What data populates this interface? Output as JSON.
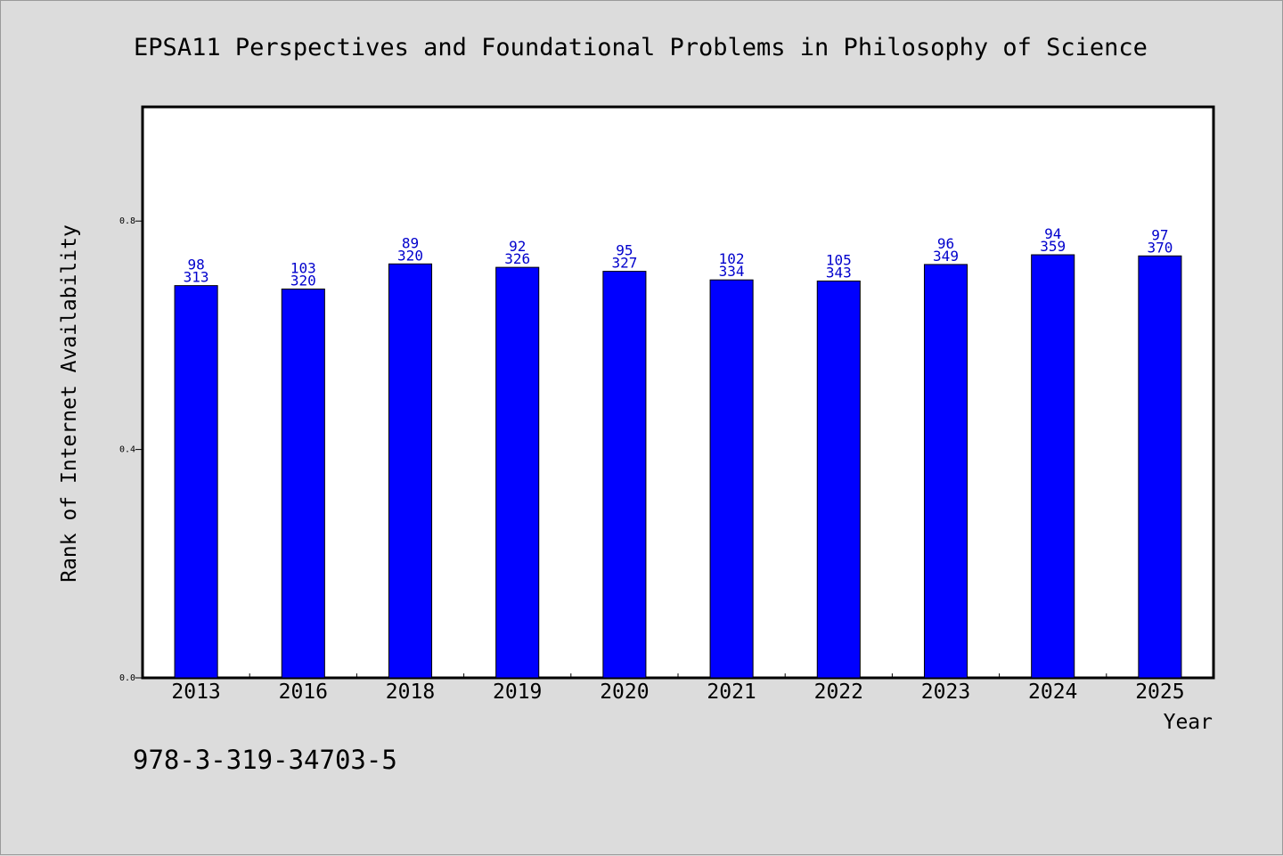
{
  "chart_data": {
    "type": "bar",
    "title": "EPSA11 Perspectives and Foundational Problems in Philosophy of Science",
    "xlabel": "Year",
    "ylabel": "Rank of Internet Availability",
    "categories": [
      "2013",
      "2016",
      "2018",
      "2019",
      "2020",
      "2021",
      "2022",
      "2023",
      "2024",
      "2025"
    ],
    "values": [
      0.687,
      0.681,
      0.725,
      0.719,
      0.712,
      0.697,
      0.695,
      0.724,
      0.741,
      0.739
    ],
    "labels_top": [
      "98",
      "103",
      "89",
      "92",
      "95",
      "102",
      "105",
      "96",
      "94",
      "97"
    ],
    "labels_bottom": [
      "313",
      "320",
      "320",
      "326",
      "327",
      "334",
      "343",
      "349",
      "359",
      "370"
    ],
    "ylim": [
      0.0,
      1.0
    ],
    "yticks": [
      0.0,
      0.4,
      0.8
    ],
    "ytick_labels": [
      "0.0",
      "0.4",
      "0.8"
    ],
    "grid": false,
    "legend": "none",
    "bar_color": "#0000ff",
    "label_color": "#0000cc"
  },
  "footer": {
    "isbn": "978-3-319-34703-5"
  }
}
